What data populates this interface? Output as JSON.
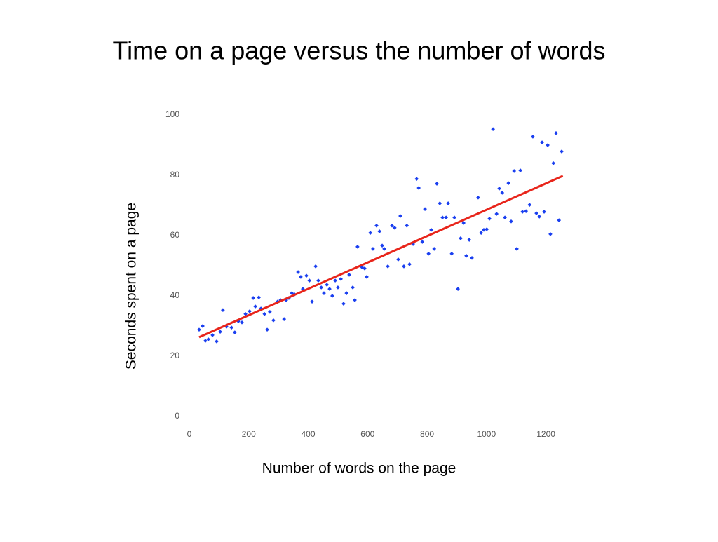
{
  "chart_data": {
    "type": "scatter",
    "title": "Time on a page versus the number of words",
    "x_label": "Number of words on the page",
    "y_label": "Seconds spent on a page",
    "xlim": [
      0,
      1260
    ],
    "ylim": [
      0,
      100
    ],
    "xticks": [
      0,
      200,
      400,
      600,
      800,
      1000,
      1200
    ],
    "yticks": [
      0,
      20,
      40,
      60,
      80,
      100
    ],
    "grid": false,
    "series": [
      {
        "color": "#1a3ff0",
        "x": [
          33,
          45,
          54,
          64,
          78,
          92,
          104,
          113,
          125,
          142,
          153,
          165,
          177,
          189,
          203,
          215,
          222,
          234,
          241,
          253,
          262,
          271,
          283,
          297,
          307,
          319,
          326,
          335,
          345,
          354,
          366,
          375,
          382,
          394,
          404,
          413,
          425,
          434,
          444,
          453,
          463,
          472,
          481,
          491,
          500,
          510,
          519,
          529,
          538,
          550,
          557,
          566,
          581,
          590,
          597,
          609,
          618,
          630,
          640,
          649,
          656,
          668,
          682,
          691,
          703,
          710,
          722,
          732,
          741,
          753,
          765,
          772,
          784,
          793,
          805,
          814,
          824,
          833,
          843,
          852,
          864,
          871,
          883,
          892,
          904,
          913,
          923,
          932,
          942,
          951,
          972,
          982,
          991,
          1001,
          1010,
          1022,
          1034,
          1043,
          1053,
          1062,
          1074,
          1083,
          1093,
          1102,
          1114,
          1121,
          1133,
          1145,
          1156,
          1168,
          1178,
          1187,
          1194,
          1206,
          1215,
          1225,
          1234,
          1244,
          1253
        ],
        "values": [
          28.8,
          30.0,
          25.1,
          25.6,
          27.0,
          24.9,
          28.1,
          35.3,
          29.8,
          29.5,
          27.9,
          31.6,
          31.2,
          34.0,
          34.9,
          39.3,
          36.5,
          39.5,
          35.8,
          34.0,
          28.8,
          34.7,
          31.9,
          38.1,
          38.6,
          32.3,
          38.6,
          39.3,
          40.9,
          40.5,
          47.9,
          46.3,
          42.3,
          46.7,
          45.1,
          38.1,
          49.8,
          45.1,
          42.8,
          40.9,
          43.7,
          42.3,
          40.0,
          45.1,
          42.8,
          45.6,
          37.4,
          40.9,
          47.0,
          42.8,
          38.6,
          56.3,
          49.5,
          49.1,
          46.3,
          60.9,
          55.6,
          63.3,
          61.4,
          56.7,
          55.6,
          49.8,
          63.3,
          62.6,
          52.1,
          66.5,
          49.8,
          63.3,
          50.5,
          57.2,
          78.8,
          75.8,
          57.9,
          68.8,
          54.0,
          61.9,
          55.6,
          77.2,
          70.7,
          66.0,
          66.0,
          70.7,
          54.0,
          66.0,
          42.3,
          59.1,
          64.2,
          53.3,
          58.6,
          52.6,
          72.6,
          60.9,
          61.9,
          62.1,
          65.6,
          95.3,
          67.2,
          75.6,
          74.2,
          66.0,
          77.4,
          64.7,
          81.4,
          55.6,
          81.6,
          67.9,
          68.1,
          70.2,
          92.8,
          67.4,
          66.3,
          90.9,
          67.9,
          90.0,
          60.5,
          84.0,
          94.0,
          65.1,
          87.9
        ]
      }
    ],
    "trend_line": {
      "color": "#e8251b",
      "x": [
        33,
        1257
      ],
      "values": [
        26.3,
        79.8
      ]
    }
  }
}
